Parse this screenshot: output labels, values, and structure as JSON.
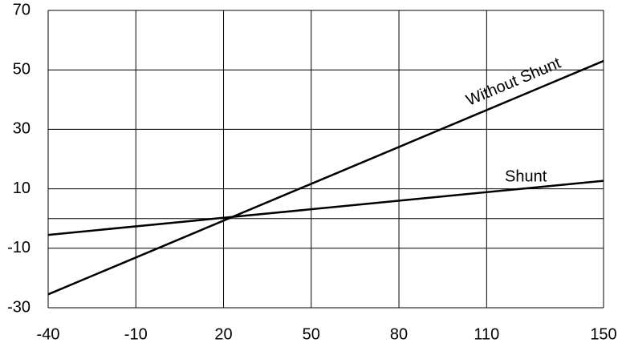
{
  "chart_data": {
    "type": "line",
    "x": [
      -40,
      150
    ],
    "series": [
      {
        "name": "Without Shunt",
        "color": "#000000",
        "values": [
          -25.5,
          53
        ]
      },
      {
        "name": "Shunt",
        "color": "#000000",
        "values": [
          -5.5,
          12.7
        ]
      }
    ],
    "xlim": [
      -40,
      150
    ],
    "xticks": [
      -40,
      -10,
      20,
      50,
      80,
      110,
      150
    ],
    "ylim": [
      -30,
      70
    ],
    "yticks": [
      -30,
      -10,
      10,
      30,
      50,
      70
    ],
    "hlines": [
      0
    ],
    "grid": true
  }
}
